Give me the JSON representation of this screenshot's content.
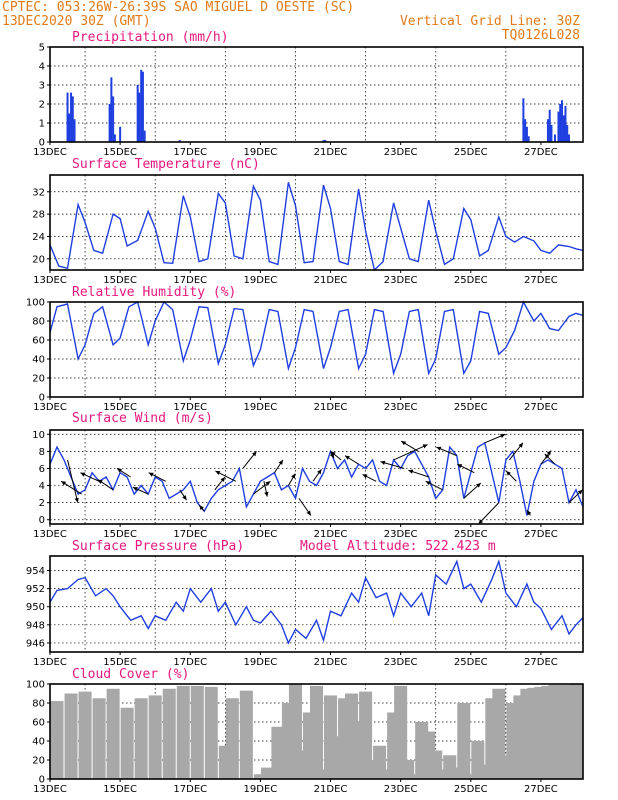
{
  "header": {
    "line1_left": "CPTEC:  053:26W-26:39S  SAO MIGUEL D OESTE (SC)",
    "line2_left": "13DEC2020 30Z (GMT)",
    "line2_right": "Vertical Grid Line: 30Z",
    "line3_right": "TQ0126L028"
  },
  "colors": {
    "header": "#e07b1a",
    "titles": "#e8177d",
    "series": "#1f3fe0",
    "cloud": "#a8a8a8",
    "axes": "#000000"
  },
  "x_axis": {
    "tick_labels": [
      "13DEC",
      "15DEC",
      "17DEC",
      "19DEC",
      "21DEC",
      "23DEC",
      "25DEC",
      "27DEC"
    ],
    "tick_days": [
      0,
      2,
      4,
      6,
      8,
      10,
      12,
      14
    ],
    "vertical_grid_days": [
      1,
      3,
      5,
      7,
      9,
      11,
      13
    ],
    "range_days": [
      0,
      15.2
    ]
  },
  "chart_data": [
    {
      "type": "bar",
      "title": "Precipitation (mm/h)",
      "ylim": [
        0,
        5
      ],
      "y_ticks": [
        0,
        1,
        2,
        3,
        4,
        5
      ],
      "grid": true,
      "x": [
        0.5,
        0.55,
        0.6,
        0.65,
        0.7,
        1.7,
        1.75,
        1.8,
        1.85,
        2.0,
        2.5,
        2.55,
        2.6,
        2.65,
        2.7,
        3.7,
        7.8,
        7.85,
        13.5,
        13.55,
        13.6,
        13.65,
        14.2,
        14.25,
        14.3,
        14.4,
        14.5,
        14.55,
        14.6,
        14.65,
        14.7,
        14.75,
        14.8
      ],
      "values": [
        2.6,
        1.5,
        2.6,
        2.4,
        1.2,
        2.0,
        3.4,
        2.4,
        0.4,
        0.8,
        3.0,
        2.6,
        3.8,
        3.7,
        0.6,
        0.1,
        0.1,
        0.1,
        2.3,
        1.2,
        0.8,
        0.3,
        1.2,
        1.7,
        0.9,
        0.4,
        1.6,
        2.0,
        2.2,
        1.4,
        1.9,
        0.9,
        0.4
      ]
    },
    {
      "type": "line",
      "title": "Surface Temperature (nC)",
      "ylim": [
        18,
        35
      ],
      "y_ticks": [
        20,
        24,
        28,
        32
      ],
      "grid": true,
      "x": [
        0,
        0.25,
        0.5,
        0.8,
        1.0,
        1.25,
        1.5,
        1.8,
        2.0,
        2.2,
        2.5,
        2.8,
        3.0,
        3.25,
        3.5,
        3.8,
        4.0,
        4.25,
        4.5,
        4.8,
        5.0,
        5.25,
        5.5,
        5.8,
        6.0,
        6.25,
        6.5,
        6.8,
        7.0,
        7.25,
        7.5,
        7.8,
        8.0,
        8.25,
        8.5,
        8.8,
        9.0,
        9.25,
        9.5,
        9.8,
        10.0,
        10.25,
        10.5,
        10.8,
        11.0,
        11.25,
        11.5,
        11.8,
        12.0,
        12.25,
        12.5,
        12.8,
        13.0,
        13.25,
        13.5,
        13.8,
        14.0,
        14.25,
        14.5,
        14.8,
        15.0,
        15.2
      ],
      "values": [
        22.5,
        18.7,
        18.3,
        29.7,
        26.5,
        21.5,
        21.0,
        28.0,
        27.2,
        22.3,
        23.3,
        28.5,
        25.5,
        19.3,
        19.2,
        31.3,
        27.5,
        19.5,
        20.0,
        31.7,
        30.0,
        20.5,
        20.0,
        33.0,
        30.5,
        19.5,
        19.0,
        33.7,
        29.5,
        19.3,
        19.5,
        33.2,
        29.0,
        19.5,
        19.0,
        32.5,
        25.0,
        18.0,
        19.5,
        30.0,
        25.5,
        20.0,
        19.5,
        30.5,
        25.0,
        19.0,
        20.0,
        29.0,
        27.0,
        20.5,
        21.5,
        27.5,
        24.0,
        23.0,
        24.0,
        23.2,
        21.5,
        21.0,
        22.5,
        22.2,
        21.8,
        21.5
      ]
    },
    {
      "type": "line",
      "title": "Relative Humidity (%)",
      "ylim": [
        0,
        100
      ],
      "y_ticks": [
        0,
        20,
        40,
        60,
        80,
        100
      ],
      "grid": true,
      "x": [
        0,
        0.2,
        0.5,
        0.8,
        1.0,
        1.25,
        1.5,
        1.8,
        2.0,
        2.25,
        2.5,
        2.8,
        3.0,
        3.25,
        3.5,
        3.8,
        4.0,
        4.25,
        4.5,
        4.8,
        5.0,
        5.25,
        5.5,
        5.8,
        6.0,
        6.25,
        6.5,
        6.8,
        7.0,
        7.25,
        7.5,
        7.8,
        8.0,
        8.25,
        8.5,
        8.8,
        9.0,
        9.25,
        9.5,
        9.8,
        10.0,
        10.25,
        10.5,
        10.8,
        11.0,
        11.25,
        11.5,
        11.8,
        12.0,
        12.25,
        12.5,
        12.8,
        13.0,
        13.25,
        13.5,
        13.8,
        14.0,
        14.25,
        14.5,
        14.8,
        15.0,
        15.2
      ],
      "values": [
        68,
        95,
        98,
        40,
        55,
        88,
        95,
        55,
        62,
        95,
        100,
        55,
        80,
        100,
        92,
        38,
        60,
        95,
        94,
        35,
        55,
        93,
        92,
        33,
        50,
        92,
        90,
        30,
        52,
        92,
        90,
        30,
        52,
        90,
        92,
        30,
        45,
        92,
        90,
        25,
        45,
        90,
        92,
        25,
        40,
        90,
        92,
        25,
        38,
        90,
        88,
        45,
        52,
        70,
        100,
        80,
        88,
        72,
        70,
        85,
        88,
        86
      ]
    },
    {
      "type": "line",
      "title": "Surface Wind (m/s)",
      "ylim": [
        -0.5,
        10.5
      ],
      "y_ticks": [
        0,
        2,
        4,
        6,
        8,
        10
      ],
      "grid": true,
      "x": [
        0,
        0.2,
        0.4,
        0.6,
        0.8,
        1.0,
        1.2,
        1.4,
        1.6,
        1.8,
        2.0,
        2.2,
        2.4,
        2.6,
        2.8,
        3.0,
        3.2,
        3.4,
        3.6,
        3.8,
        4.0,
        4.2,
        4.4,
        4.6,
        4.8,
        5.0,
        5.2,
        5.4,
        5.6,
        5.8,
        6.0,
        6.2,
        6.4,
        6.6,
        6.8,
        7.0,
        7.2,
        7.4,
        7.6,
        7.8,
        8.0,
        8.2,
        8.4,
        8.6,
        8.8,
        9.0,
        9.2,
        9.4,
        9.6,
        9.8,
        10.0,
        10.2,
        10.4,
        10.6,
        10.8,
        11.0,
        11.2,
        11.4,
        11.6,
        11.8,
        12.0,
        12.2,
        12.4,
        12.6,
        12.8,
        13.0,
        13.2,
        13.4,
        13.6,
        13.8,
        14.0,
        14.2,
        14.4,
        14.6,
        14.8,
        15.0,
        15.2
      ],
      "values": [
        6.5,
        8.5,
        7.0,
        5.0,
        3.0,
        3.5,
        5.5,
        4.5,
        5.0,
        3.5,
        5.5,
        5.0,
        3.0,
        4.0,
        3.0,
        5.0,
        4.5,
        2.5,
        3.0,
        3.5,
        4.5,
        2.0,
        1.0,
        2.5,
        3.5,
        4.0,
        4.5,
        6.0,
        1.5,
        3.0,
        4.5,
        5.0,
        5.5,
        3.5,
        4.0,
        2.5,
        6.0,
        4.5,
        4.0,
        5.5,
        8.0,
        6.0,
        7.0,
        5.0,
        6.5,
        6.0,
        7.0,
        4.5,
        4.0,
        7.0,
        6.0,
        7.5,
        8.0,
        6.5,
        5.0,
        2.5,
        3.5,
        8.5,
        7.5,
        2.5,
        5.5,
        8.5,
        9.0,
        5.5,
        2.0,
        7.0,
        8.0,
        4.5,
        0.5,
        4.5,
        6.5,
        7.0,
        6.5,
        6.0,
        2.0,
        3.5,
        1.5
      ],
      "arrows": [
        {
          "x": 0.5,
          "dx": 0.3,
          "dy": -5.0
        },
        {
          "x": 0.9,
          "dx": -0.6,
          "dy": 1.5
        },
        {
          "x": 1.4,
          "dx": -0.55,
          "dy": 1.0
        },
        {
          "x": 1.8,
          "dx": -0.45,
          "dy": 1.2
        },
        {
          "x": 2.3,
          "dx": -0.4,
          "dy": 1.0
        },
        {
          "x": 2.8,
          "dx": -0.45,
          "dy": 0.8
        },
        {
          "x": 3.3,
          "dx": -0.5,
          "dy": 1.0
        },
        {
          "x": 3.7,
          "dx": 0.2,
          "dy": -1.2
        },
        {
          "x": 4.4,
          "dx": -0.15,
          "dy": 0.7
        },
        {
          "x": 4.7,
          "dx": 0.3,
          "dy": 1.5
        },
        {
          "x": 5.3,
          "dx": -0.6,
          "dy": 1.2
        },
        {
          "x": 5.5,
          "dx": 0.4,
          "dy": 2.0
        },
        {
          "x": 5.8,
          "dx": 0.5,
          "dy": 1.5
        },
        {
          "x": 6.1,
          "dx": 0.1,
          "dy": -1.8
        },
        {
          "x": 6.4,
          "dx": 0.25,
          "dy": 1.5
        },
        {
          "x": 6.8,
          "dx": 0.2,
          "dy": 1.4
        },
        {
          "x": 7.1,
          "dx": 0.35,
          "dy": -2.0
        },
        {
          "x": 7.5,
          "dx": 0.25,
          "dy": 1.4
        },
        {
          "x": 8.0,
          "dx": 0.1,
          "dy": -0.8
        },
        {
          "x": 8.3,
          "dx": -0.3,
          "dy": 1.0
        },
        {
          "x": 8.8,
          "dx": -0.4,
          "dy": 1.0
        },
        {
          "x": 9.3,
          "dx": -0.4,
          "dy": 0.8
        },
        {
          "x": 9.8,
          "dx": 1.0,
          "dy": 1.8
        },
        {
          "x": 10.1,
          "dx": -0.7,
          "dy": 0.8
        },
        {
          "x": 10.5,
          "dx": -0.5,
          "dy": 1.2
        },
        {
          "x": 10.8,
          "dx": -0.6,
          "dy": 0.8
        },
        {
          "x": 11.2,
          "dx": -0.5,
          "dy": 1.0
        },
        {
          "x": 11.6,
          "dx": -0.6,
          "dy": 1.0
        },
        {
          "x": 11.8,
          "dx": 0.5,
          "dy": 1.8
        },
        {
          "x": 12.1,
          "dx": -0.5,
          "dy": 1.0
        },
        {
          "x": 12.4,
          "dx": 0.6,
          "dy": 1.0
        },
        {
          "x": 12.8,
          "dx": -0.6,
          "dy": -2.5
        },
        {
          "x": 13.1,
          "dx": 0.4,
          "dy": 2.0
        },
        {
          "x": 13.3,
          "dx": -0.3,
          "dy": 1.2
        },
        {
          "x": 13.7,
          "dx": -0.1,
          "dy": 0.6
        },
        {
          "x": 14.0,
          "dx": 0.3,
          "dy": 1.6
        },
        {
          "x": 14.4,
          "dx": -0.3,
          "dy": 1.2
        },
        {
          "x": 14.8,
          "dx": 0.4,
          "dy": 1.5
        }
      ]
    },
    {
      "type": "line",
      "title": "Surface Pressure (hPa)",
      "annotation": "Model Altitude: 522.423 m",
      "ylim": [
        945,
        955.6
      ],
      "y_ticks": [
        946,
        948,
        950,
        952,
        954
      ],
      "grid": true,
      "x": [
        0,
        0.2,
        0.5,
        0.8,
        1.0,
        1.3,
        1.6,
        1.8,
        2.0,
        2.3,
        2.6,
        2.8,
        3.0,
        3.3,
        3.6,
        3.8,
        4.0,
        4.3,
        4.6,
        4.8,
        5.0,
        5.3,
        5.6,
        5.8,
        6.0,
        6.3,
        6.6,
        6.8,
        7.0,
        7.3,
        7.6,
        7.8,
        8.0,
        8.3,
        8.6,
        8.8,
        9.0,
        9.3,
        9.6,
        9.8,
        10.0,
        10.3,
        10.6,
        10.8,
        11.0,
        11.3,
        11.6,
        11.8,
        12.0,
        12.3,
        12.6,
        12.8,
        13.0,
        13.3,
        13.6,
        13.8,
        14.0,
        14.3,
        14.6,
        14.8,
        15.0,
        15.2
      ],
      "values": [
        950.5,
        951.8,
        952.0,
        953.0,
        953.2,
        951.2,
        952.0,
        951.2,
        950.0,
        948.5,
        949.0,
        947.6,
        949.0,
        948.5,
        950.5,
        949.5,
        952.0,
        950.5,
        952.0,
        949.5,
        950.5,
        948.0,
        950.0,
        948.5,
        948.2,
        949.5,
        948.0,
        946.0,
        947.5,
        946.5,
        948.5,
        946.3,
        949.5,
        949.0,
        951.5,
        950.5,
        953.2,
        951.0,
        951.5,
        949.0,
        951.5,
        950.0,
        951.5,
        949.0,
        953.5,
        952.5,
        955.0,
        952.0,
        952.5,
        950.5,
        953.0,
        955.0,
        951.5,
        950.0,
        952.5,
        950.5,
        949.8,
        947.5,
        949.0,
        947.0,
        948.0,
        948.8
      ]
    },
    {
      "type": "bar",
      "title": "Cloud Cover (%)",
      "ylim": [
        0,
        100
      ],
      "y_ticks": [
        0,
        20,
        40,
        60,
        80,
        100
      ],
      "grid": true,
      "x": [
        0.2,
        0.6,
        1.0,
        1.4,
        1.8,
        2.2,
        2.6,
        3.0,
        3.4,
        3.8,
        4.2,
        4.6,
        5.0,
        5.2,
        5.6,
        6.0,
        6.2,
        6.5,
        6.8,
        7.0,
        7.2,
        7.4,
        7.6,
        7.8,
        8.0,
        8.2,
        8.4,
        8.6,
        8.8,
        9.0,
        9.2,
        9.4,
        9.6,
        9.8,
        10.0,
        10.2,
        10.4,
        10.6,
        10.8,
        11.0,
        11.2,
        11.4,
        11.6,
        11.8,
        12.0,
        12.2,
        12.4,
        12.6,
        12.8,
        13.0,
        13.2,
        13.4,
        13.6,
        13.8,
        14.0,
        14.2,
        14.4,
        14.6,
        14.8,
        15.0
      ],
      "values": [
        82,
        90,
        92,
        85,
        95,
        75,
        85,
        88,
        95,
        98,
        98,
        97,
        35,
        85,
        93,
        5,
        12,
        55,
        80,
        100,
        30,
        70,
        98,
        10,
        88,
        45,
        85,
        90,
        60,
        92,
        20,
        35,
        10,
        70,
        98,
        20,
        5,
        60,
        50,
        30,
        10,
        25,
        12,
        80,
        5,
        40,
        15,
        85,
        95,
        25,
        80,
        88,
        95,
        96,
        97,
        98,
        99,
        99,
        99,
        100
      ]
    }
  ]
}
